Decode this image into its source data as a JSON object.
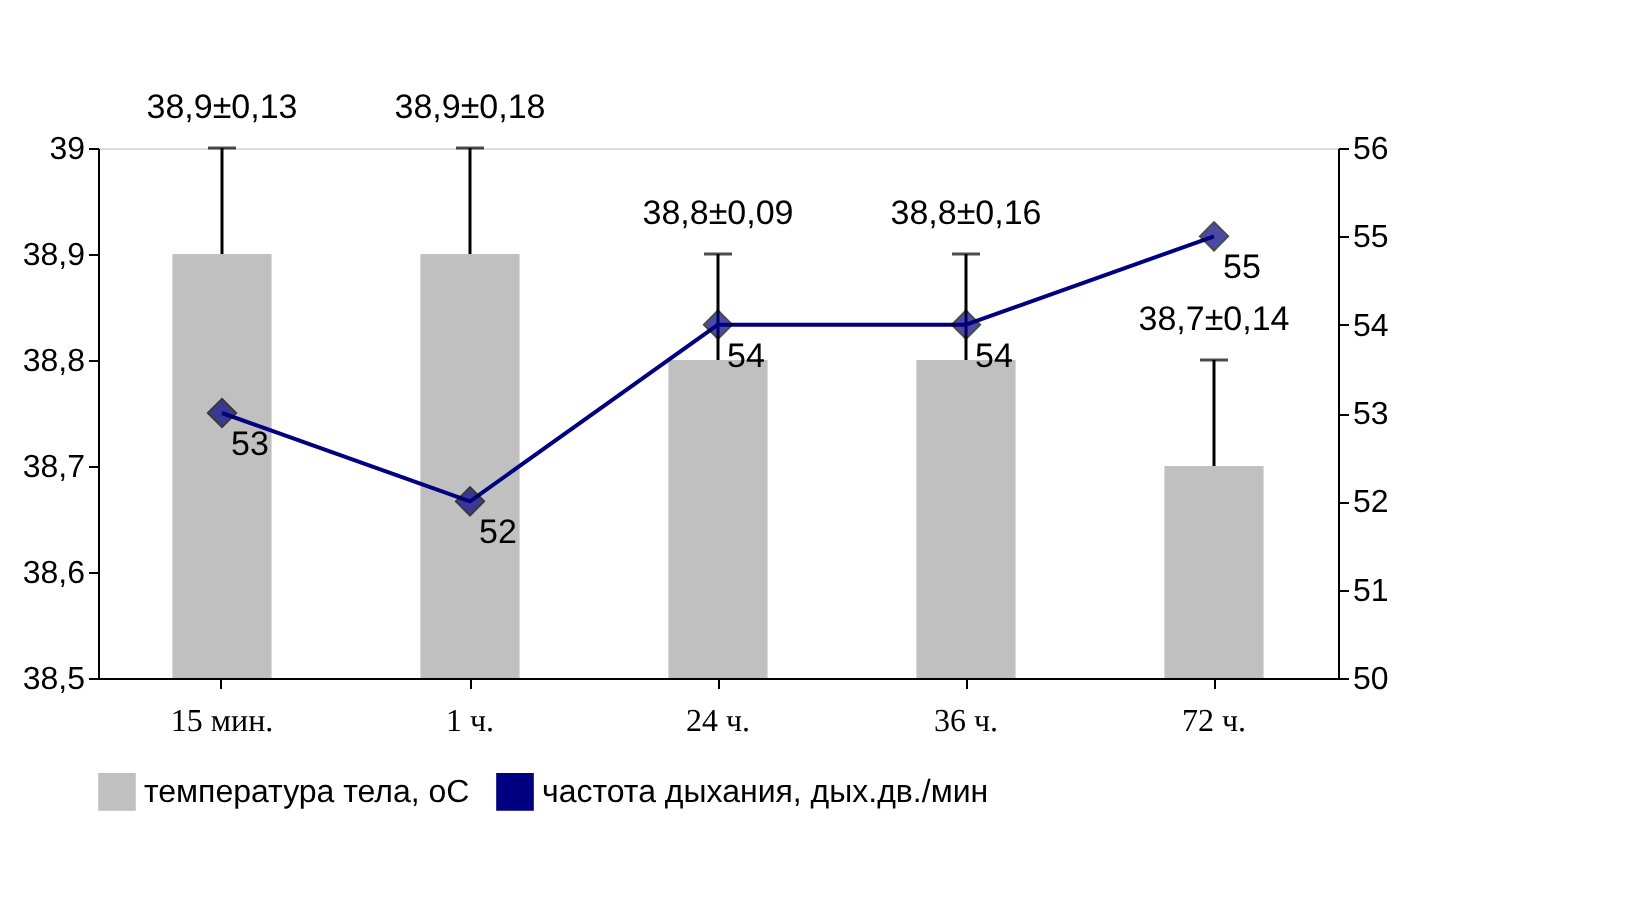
{
  "chart_data": {
    "type": "bar",
    "categories": [
      "15 мин.",
      "1 ч.",
      "24 ч.",
      "36 ч.",
      "72 ч."
    ],
    "series": [
      {
        "name": "температура тела, оС",
        "color": "#c0c0c0",
        "values": [
          38.9,
          38.9,
          38.8,
          38.8,
          38.7
        ],
        "errors": [
          [
            38.9,
            39.0
          ],
          [
            38.9,
            39.0
          ],
          [
            38.8,
            38.9
          ],
          [
            38.8,
            38.9
          ],
          [
            38.7,
            38.8
          ]
        ]
      },
      {
        "name": "частота дыхания, дых.дв./мин",
        "type": "line",
        "axis": "y2",
        "color": "#000080",
        "marker": "diamond",
        "values": [
          53,
          52,
          54,
          54,
          55
        ],
        "value_labels": [
          "53",
          "52",
          "54",
          "54",
          "55"
        ]
      }
    ],
    "annotations": [
      {
        "text": "38,9±0,13",
        "x": "15 мин.",
        "y": 39.0
      },
      {
        "text": "38,9±0,18",
        "x": "1 ч.",
        "y": 39.0
      },
      {
        "text": "38,8±0,09",
        "x": "24 ч.",
        "y": 38.9
      },
      {
        "text": "38,8±0,16",
        "x": "36 ч.",
        "y": 38.9
      },
      {
        "text": "38,7±0,14",
        "x": "72 ч.",
        "y": 38.8
      }
    ],
    "ylim": [
      38.5,
      39
    ],
    "yticks": [
      {
        "value": 38.5,
        "label": "38,5"
      },
      {
        "value": 38.6,
        "label": "38,6"
      },
      {
        "value": 38.7,
        "label": "38,7"
      },
      {
        "value": 38.8,
        "label": "38,8"
      },
      {
        "value": 38.9,
        "label": "38,9"
      },
      {
        "value": 39,
        "label": "39"
      }
    ],
    "y2lim": [
      50,
      56
    ],
    "y2ticks": [
      50,
      51,
      52,
      53,
      54,
      55,
      56
    ],
    "grid": false,
    "legend": "bottom"
  }
}
